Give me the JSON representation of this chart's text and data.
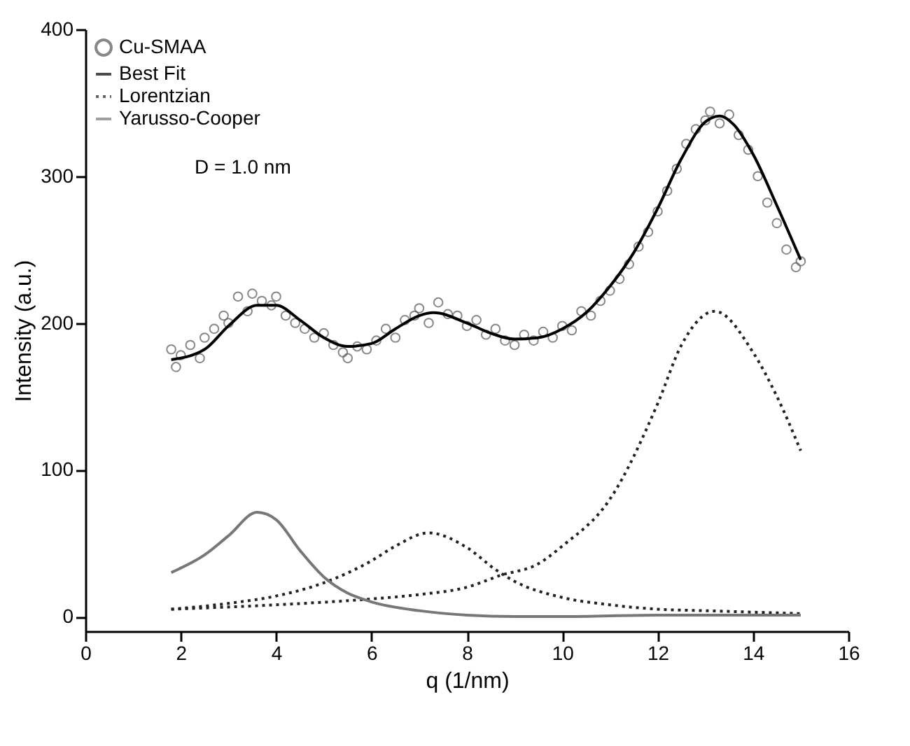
{
  "chart_data": {
    "type": "line",
    "xlabel": "q (1/nm)",
    "ylabel": "Intensity (a.u.)",
    "xlim": [
      0,
      16
    ],
    "xticks": [
      0,
      2,
      4,
      6,
      8,
      10,
      12,
      14,
      16
    ],
    "ylim": [
      -10,
      400
    ],
    "yticks": [
      0,
      100,
      200,
      300,
      400
    ],
    "grid": false,
    "legend": "top left",
    "annotations": [
      "D = 1.0 nm"
    ],
    "series": [
      {
        "name": "Cu-SMAA",
        "type": "scatter",
        "marker": "circle",
        "color": "#555555",
        "x": [
          1.8,
          1.9,
          2.0,
          2.2,
          2.4,
          2.5,
          2.7,
          2.9,
          3.0,
          3.2,
          3.4,
          3.5,
          3.7,
          3.9,
          4.0,
          4.2,
          4.4,
          4.6,
          4.8,
          5.0,
          5.2,
          5.4,
          5.5,
          5.7,
          5.9,
          6.1,
          6.3,
          6.5,
          6.7,
          6.9,
          7.0,
          7.2,
          7.4,
          7.6,
          7.8,
          8.0,
          8.2,
          8.4,
          8.6,
          8.8,
          9.0,
          9.2,
          9.4,
          9.6,
          9.8,
          10.0,
          10.2,
          10.4,
          10.6,
          10.8,
          11.0,
          11.2,
          11.4,
          11.6,
          11.8,
          12.0,
          12.2,
          12.4,
          12.6,
          12.8,
          13.0,
          13.1,
          13.3,
          13.5,
          13.7,
          13.9,
          14.1,
          14.3,
          14.5,
          14.7,
          14.9,
          15.0
        ],
        "values": [
          182,
          170,
          178,
          185,
          176,
          190,
          196,
          205,
          200,
          218,
          208,
          220,
          215,
          212,
          218,
          205,
          200,
          196,
          190,
          193,
          185,
          180,
          176,
          184,
          182,
          188,
          196,
          190,
          202,
          205,
          210,
          200,
          214,
          206,
          205,
          198,
          202,
          192,
          196,
          188,
          185,
          192,
          188,
          194,
          190,
          198,
          195,
          208,
          205,
          215,
          222,
          230,
          240,
          252,
          262,
          276,
          290,
          305,
          322,
          332,
          338,
          344,
          336,
          342,
          328,
          318,
          300,
          282,
          268,
          250,
          238,
          242
        ]
      },
      {
        "name": "Best Fit",
        "line_style": "solid",
        "color": "#000000",
        "x": [
          1.8,
          2.5,
          3.0,
          3.6,
          4.0,
          4.5,
          5.0,
          5.5,
          6.0,
          6.5,
          7.0,
          7.3,
          8.0,
          8.5,
          9.0,
          9.5,
          10.0,
          10.5,
          11.0,
          11.5,
          12.0,
          12.5,
          13.0,
          13.3,
          13.6,
          14.0,
          14.5,
          15.0
        ],
        "values": [
          175,
          182,
          198,
          212,
          212,
          202,
          190,
          184,
          186,
          196,
          205,
          207,
          200,
          193,
          189,
          190,
          196,
          207,
          225,
          248,
          278,
          312,
          337,
          341,
          335,
          315,
          280,
          243
        ]
      },
      {
        "name": "Lorentzian",
        "line_style": "dotted",
        "color": "#222222",
        "x": [
          1.8,
          3.0,
          4.0,
          5.0,
          6.0,
          6.5,
          7.2,
          8.0,
          8.6,
          9.0,
          10.0,
          11.0,
          12.0,
          13.0,
          14.0,
          15.0
        ],
        "values": [
          5,
          9,
          14,
          23,
          38,
          48,
          57,
          47,
          32,
          24,
          13,
          8,
          5,
          4,
          3,
          2
        ]
      },
      {
        "line_style": "dotted",
        "color": "#222222",
        "x": [
          1.8,
          4.0,
          6.0,
          7.0,
          8.0,
          8.7,
          9.5,
          10.0,
          11.0,
          12.0,
          12.5,
          13.2,
          14.0,
          14.5,
          15.0
        ],
        "values": [
          5,
          8,
          12,
          15,
          20,
          28,
          36,
          48,
          80,
          145,
          185,
          208,
          180,
          150,
          113
        ]
      },
      {
        "name": "Yarusso-Cooper",
        "line_style": "solid",
        "color": "#777777",
        "x": [
          1.8,
          2.5,
          3.0,
          3.6,
          4.0,
          4.5,
          5.0,
          5.5,
          6.0,
          7.0,
          8.0,
          9.0,
          10.0,
          12.0,
          15.0
        ],
        "values": [
          30,
          42,
          55,
          71,
          66,
          45,
          27,
          16,
          10,
          4,
          1,
          0,
          0,
          1,
          1
        ]
      }
    ]
  }
}
